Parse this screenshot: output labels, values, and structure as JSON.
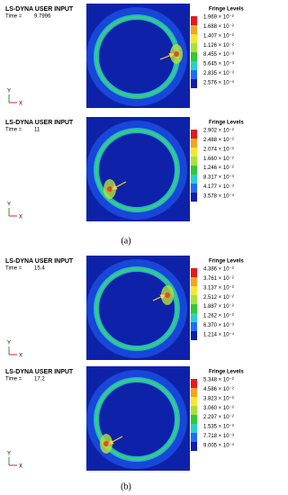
{
  "panels": [
    {
      "title": "LS-DYNA USER INPUT",
      "time_label": "Time =",
      "time": "9.7996",
      "legend_title": "Fringe Levels",
      "levels": [
        "1.969 × 10⁻²",
        "1.688 × 10⁻²",
        "1.407 × 10⁻²",
        "1.126 × 10⁻²",
        "8.455 × 10⁻³",
        "5.645 × 10⁻³",
        "2.835 × 10⁻³",
        "2.576 × 10⁻⁵"
      ],
      "axis_y": "Y",
      "axis_x": "X"
    },
    {
      "title": "LS-DYNA USER INPUT",
      "time_label": "Time =",
      "time": "11",
      "legend_title": "Fringe Levels",
      "levels": [
        "2.902 × 10⁻²",
        "2.488 × 10⁻²",
        "2.074 × 10⁻²",
        "1.660 × 10⁻²",
        "1.246 × 10⁻²",
        "8.317 × 10⁻³",
        "4.177 × 10⁻³",
        "3.578 × 10⁻⁵"
      ],
      "axis_y": "Y",
      "axis_x": "X"
    },
    {
      "title": "LS-DYNA USER INPUT",
      "time_label": "Time =",
      "time": "15.4",
      "legend_title": "Fringe Levels",
      "levels": [
        "4.386 × 10⁻²",
        "3.761 × 10⁻²",
        "3.137 × 10⁻²",
        "2.512 × 10⁻²",
        "1.887 × 10⁻²",
        "1.262 × 10⁻²",
        "6.370 × 10⁻³",
        "1.214 × 10⁻⁴"
      ],
      "axis_y": "Y",
      "axis_x": "X"
    },
    {
      "title": "LS-DYNA USER INPUT",
      "time_label": "Time =",
      "time": "17.2",
      "legend_title": "Fringe Levels",
      "levels": [
        "5.348 × 10⁻²",
        "4.586 × 10⁻²",
        "3.823 × 10⁻²",
        "3.060 × 10⁻²",
        "2.297 × 10⁻²",
        "1.535 × 10⁻²",
        "7.718 × 10⁻³",
        "9.005 × 10⁻⁵"
      ],
      "axis_y": "Y",
      "axis_x": "X"
    }
  ],
  "captions": [
    "(a)",
    "(b)"
  ]
}
